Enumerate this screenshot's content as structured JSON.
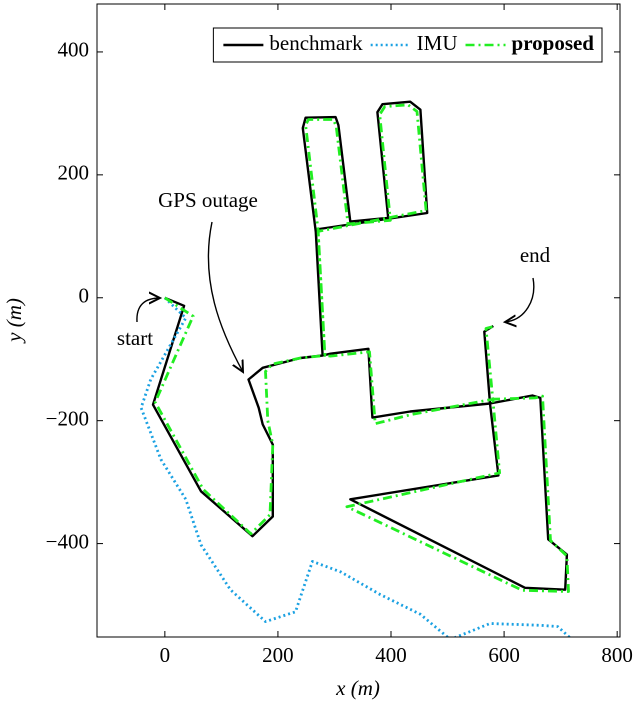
{
  "chart_data": {
    "type": "line",
    "x_label": "x (m)",
    "y_label": "y (m)",
    "xlim": [
      -120,
      805
    ],
    "ylim": [
      -552,
      478
    ],
    "xticks": [
      0,
      200,
      400,
      600,
      800
    ],
    "yticks": [
      {
        "value": -400,
        "label": "−400"
      },
      {
        "value": -200,
        "label": "−200"
      },
      0,
      200,
      400
    ],
    "grid": false,
    "legend": "upper right",
    "annotations": [
      "GPS outage",
      "start",
      "end"
    ],
    "series": [
      {
        "name": "benchmark",
        "color": "#000000",
        "dash": "solid",
        "font_weight": "normal",
        "x": [
          0,
          34,
          -21,
          64,
          155,
          191,
          191,
          173,
          166,
          148,
          173,
          240,
          279,
          267,
          244,
          249,
          302,
          307,
          328,
          395,
          376,
          385,
          434,
          452,
          464,
          267,
          279,
          293,
          360,
          367,
          434,
          575,
          590,
          328,
          637,
          708,
          711,
          678,
          664,
          650,
          575,
          565,
          581
        ],
        "y": [
          0,
          -13,
          -174,
          -315,
          -388,
          -356,
          -239,
          -206,
          -179,
          -133,
          -114,
          -98,
          -94,
          107,
          276,
          293,
          294,
          281,
          124,
          130,
          302,
          315,
          319,
          306,
          138,
          111,
          -94,
          -91,
          -83,
          -195,
          -185,
          -172,
          -289,
          -328,
          -472,
          -475,
          -418,
          -393,
          -163,
          -159,
          -172,
          -55,
          -46
        ]
      },
      {
        "name": "IMU",
        "color": "#1ba1e2",
        "dash": "dotted",
        "font_weight": "normal",
        "x": [
          0,
          37,
          -25,
          -42,
          -7,
          37,
          64,
          116,
          178,
          231,
          261,
          311,
          381,
          452,
          505,
          575,
          664,
          695,
          720
        ],
        "y": [
          0,
          -33,
          -133,
          -179,
          -263,
          -328,
          -402,
          -475,
          -527,
          -511,
          -429,
          -446,
          -483,
          -515,
          -556,
          -530,
          -533,
          -535,
          -556
        ]
      },
      {
        "name": "proposed",
        "color": "#22ee22",
        "dash": "dashdot",
        "font_weight": "bold",
        "x": [
          0,
          50,
          -17,
          68,
          152,
          186,
          191,
          182,
          178,
          190,
          240,
          283,
          271,
          249,
          254,
          298,
          303,
          324,
          399,
          380,
          389,
          430,
          446,
          462,
          271,
          283,
          293,
          362,
          372,
          436,
          580,
          592,
          322,
          632,
          714,
          711,
          682,
          668,
          655,
          580,
          568,
          584
        ],
        "y": [
          0,
          -30,
          -170,
          -312,
          -384,
          -353,
          -239,
          -200,
          -120,
          -108,
          -98,
          -94,
          110,
          281,
          290,
          290,
          279,
          120,
          126,
          298,
          311,
          314,
          303,
          142,
          108,
          -94,
          -95,
          -88,
          -205,
          -190,
          -165,
          -285,
          -340,
          -476,
          -478,
          -420,
          -395,
          -160,
          -163,
          -165,
          -50,
          -46
        ]
      }
    ]
  }
}
